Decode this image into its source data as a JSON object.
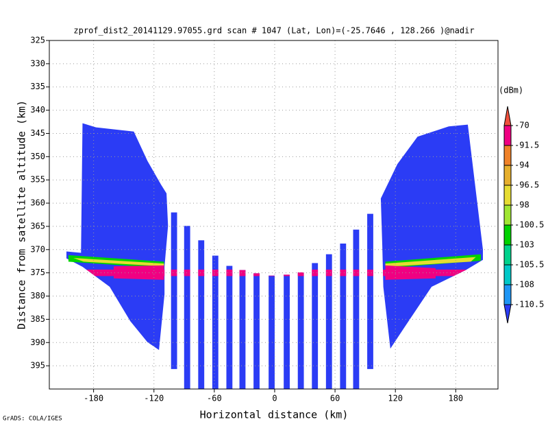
{
  "chart_data": {
    "type": "swath",
    "title": "zprof_dist2_20141129.97055.grd  scan # 1047  (Lat, Lon)=(-25.7646 , 128.266 )@nadir",
    "xlabel": "Horizontal distance (km)",
    "ylabel": "Distance from satellite altitude (km)",
    "footer": "GrADS: COLA/IGES",
    "xlim": [
      -224,
      222
    ],
    "xticks": [
      -180,
      -120,
      -60,
      0,
      60,
      120,
      180
    ],
    "ylim": [
      325,
      400
    ],
    "y_reversed": true,
    "yticks": [
      325,
      330,
      335,
      340,
      345,
      350,
      355,
      360,
      365,
      370,
      375,
      380,
      385,
      390,
      395
    ],
    "grid": true,
    "colorbar": {
      "label": "(dBm)",
      "levels": [
        -110.5,
        -108,
        -105.5,
        -103,
        -100.5,
        -98,
        -96.5,
        -94,
        -91.5,
        -70
      ],
      "colors": [
        "#2b3cf5",
        "#1e96f5",
        "#00c8c8",
        "#00d28c",
        "#00d200",
        "#a0e632",
        "#e6dc32",
        "#e6af2d",
        "#f08228",
        "#f00082",
        "#f0503c"
      ]
    },
    "regions": [
      {
        "x": [
          -191,
          -177.6,
          -140,
          -126.5,
          -113,
          -107.5,
          -106,
          -109.5,
          -109.5,
          -115,
          -126.5,
          -143.5,
          -164,
          -191,
          -207,
          -207,
          -192.5
        ],
        "y": [
          342.8,
          343.7,
          344.6,
          350.9,
          356,
          357.9,
          364.9,
          373.7,
          379.6,
          391.6,
          389.9,
          385.4,
          378,
          373.7,
          371.9,
          370.4,
          370.7
        ],
        "value": -112
      },
      {
        "x": [
          192,
          173,
          142,
          122,
          105.5,
          107,
          108,
          115,
          128.5,
          156,
          190,
          207,
          207
        ],
        "y": [
          343.1,
          343.5,
          345.7,
          351.6,
          359,
          369.3,
          378,
          391.3,
          386.9,
          378,
          374.4,
          372.2,
          370
        ],
        "value": -112
      },
      {
        "x": [
          -205,
          -110,
          -110,
          -205
        ],
        "y": [
          371.2,
          372.6,
          374,
          372.6
        ],
        "value": -101
      },
      {
        "x": [
          110,
          205,
          205,
          110
        ],
        "y": [
          372.6,
          371,
          372.4,
          374
        ],
        "value": -101
      },
      {
        "x": [
          -200,
          -110,
          -110,
          -190
        ],
        "y": [
          371.8,
          373,
          373.6,
          372.6
        ],
        "value": -97
      },
      {
        "x": [
          110,
          200,
          195,
          110
        ],
        "y": [
          373,
          371.6,
          372.6,
          373.7
        ],
        "value": -97
      },
      {
        "x": [
          -160,
          -110,
          -110,
          -160
        ],
        "y": [
          373.6,
          373.4,
          376.5,
          376.2
        ],
        "value": -80
      },
      {
        "x": [
          110,
          160,
          160,
          110
        ],
        "y": [
          373.4,
          374,
          376.2,
          376.5
        ],
        "value": -80
      }
    ],
    "columns": {
      "x": [
        -100,
        -87,
        -73,
        -59,
        -45,
        -32,
        -18,
        -3,
        12,
        26,
        40,
        54,
        68,
        81,
        95
      ],
      "top": [
        362,
        364.9,
        368,
        371.3,
        373.5,
        374.4,
        375.1,
        375.6,
        375.4,
        374.9,
        372.9,
        371,
        368.7,
        365.7,
        362.3
      ],
      "bottom": [
        395.7,
        400,
        400,
        400,
        400,
        400,
        400,
        400,
        400,
        400,
        400,
        400,
        400,
        400,
        395.7
      ],
      "value": -112
    },
    "column_width": 6,
    "bright_band": {
      "top": 374.3,
      "bottom": 375.7,
      "value": -80
    }
  }
}
